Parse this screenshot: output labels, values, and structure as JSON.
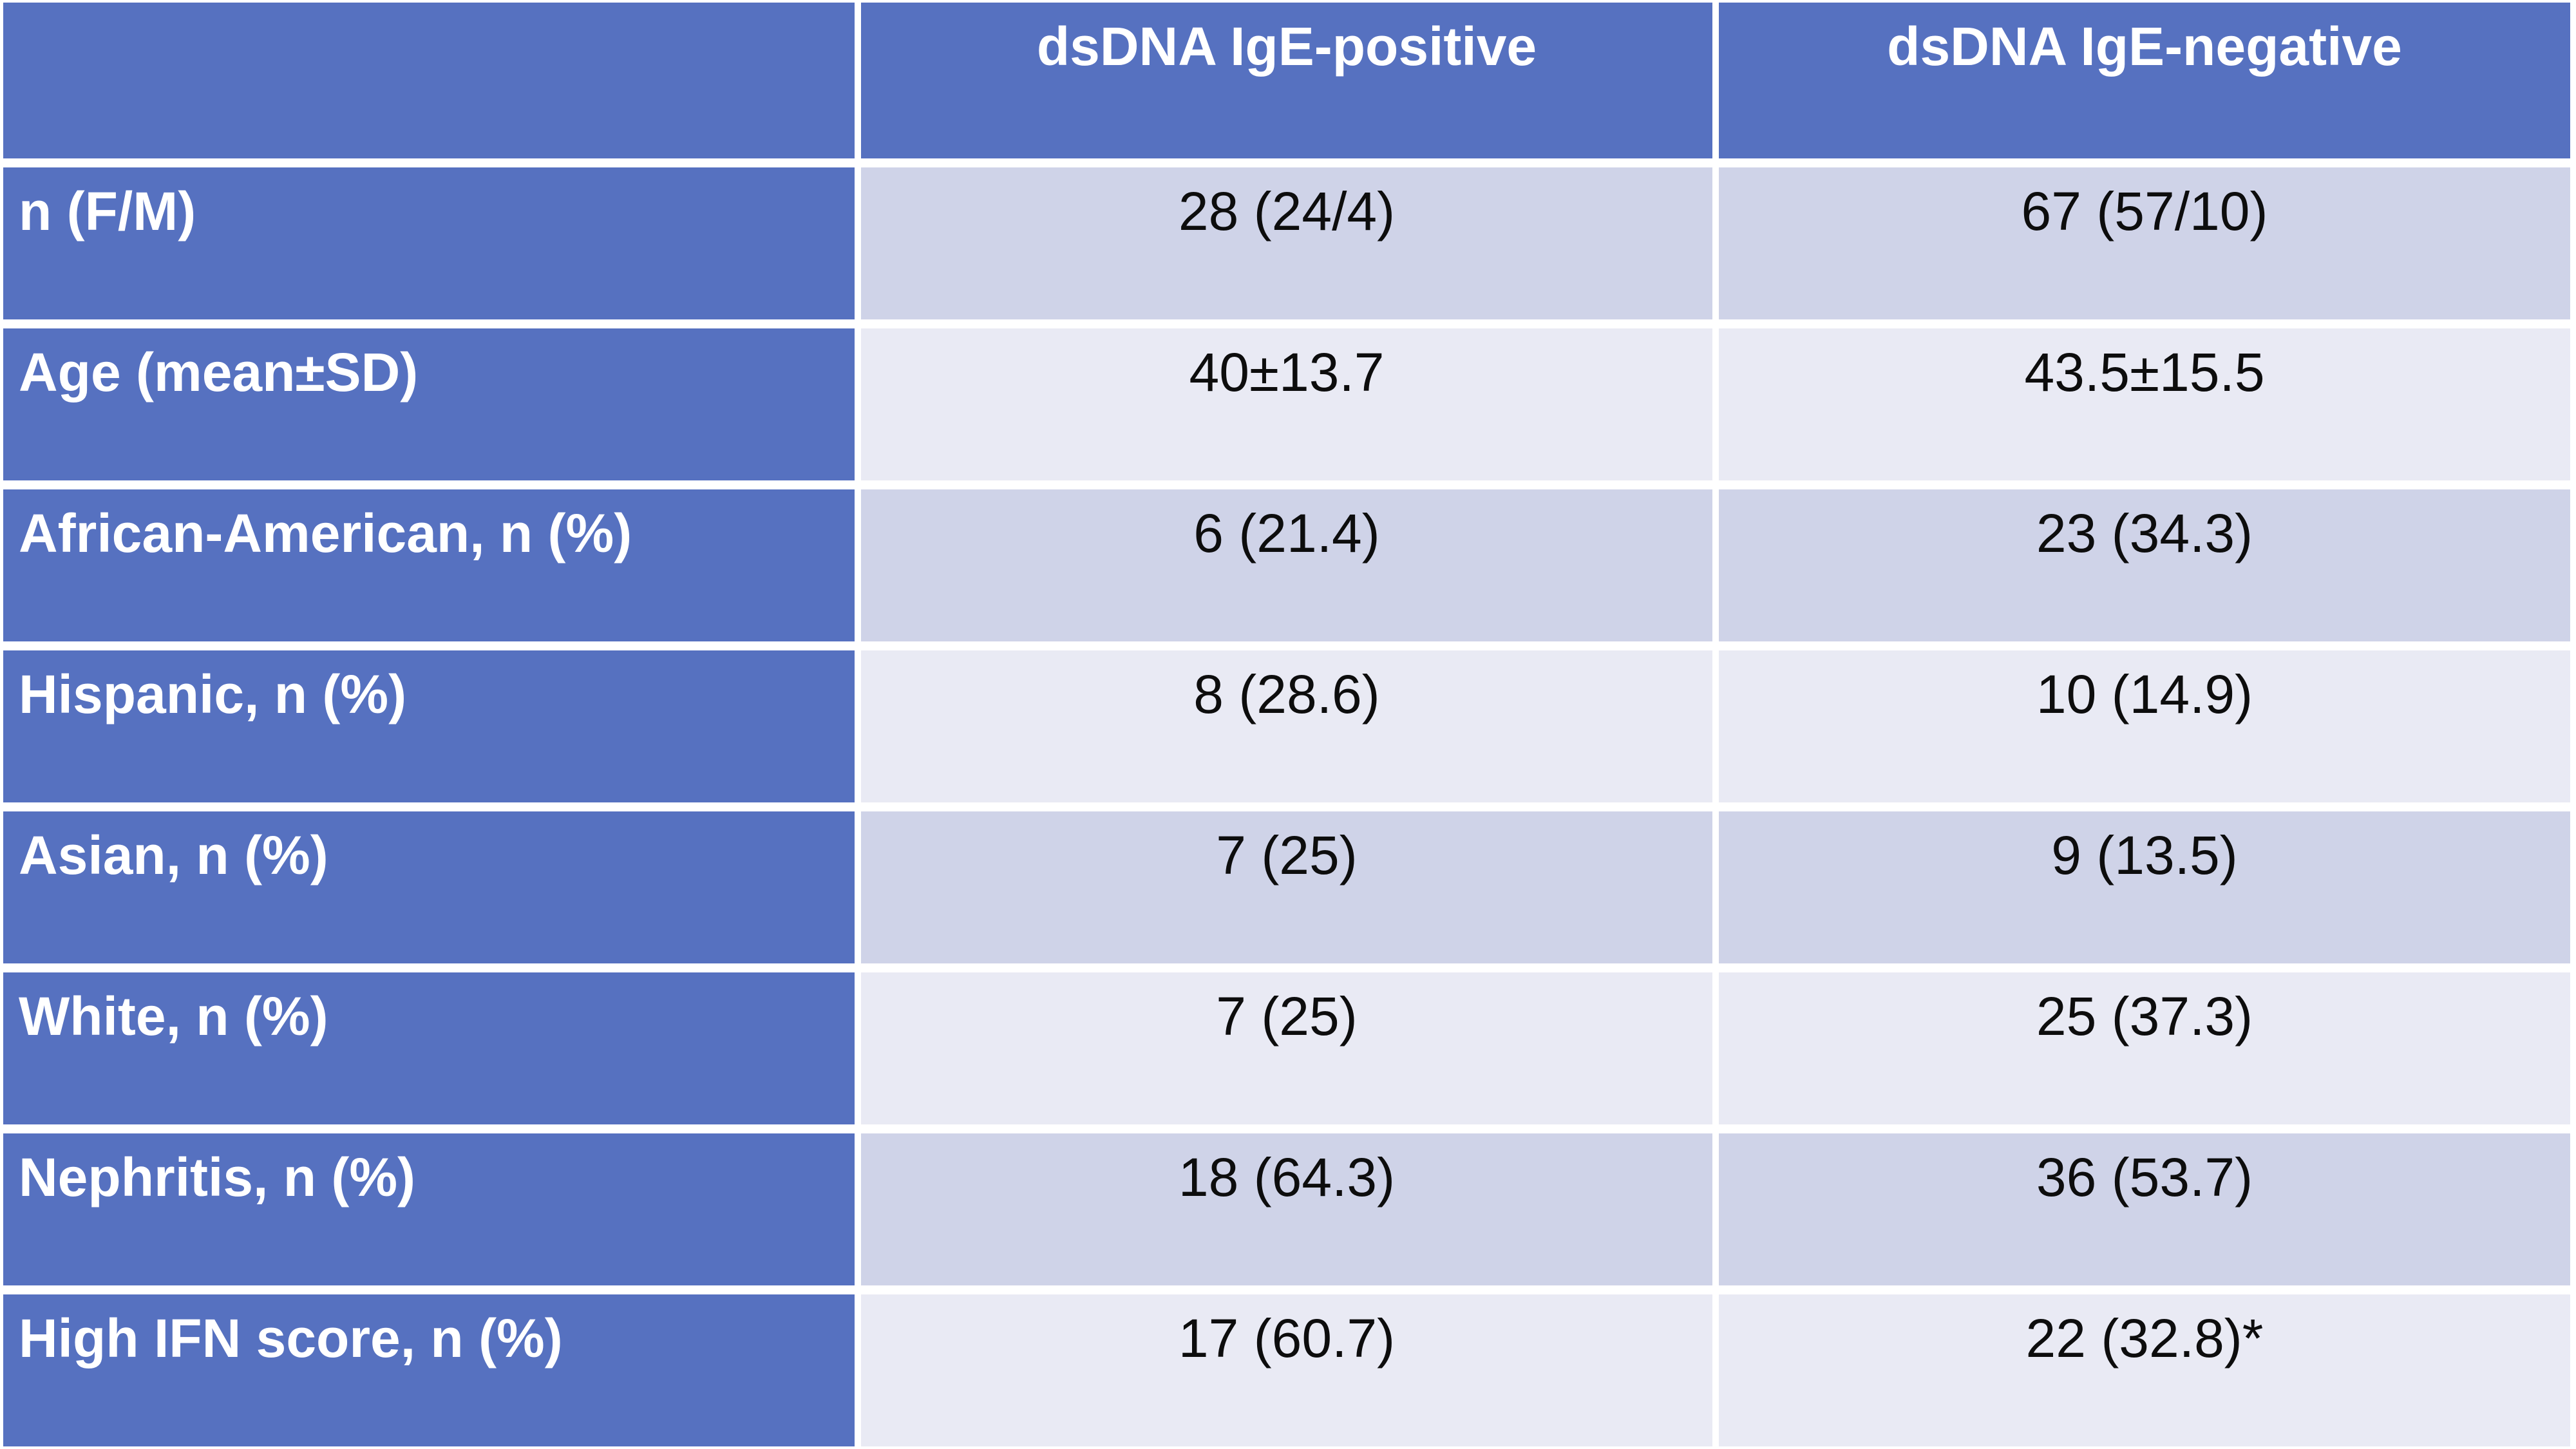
{
  "table": {
    "header": {
      "corner": "",
      "positive": "dsDNA IgE-positive",
      "negative": "dsDNA IgE-negative"
    },
    "rows": [
      {
        "label": "n (F/M)",
        "positive": "28 (24/4)",
        "negative": "67 (57/10)"
      },
      {
        "label": "Age (mean±SD)",
        "positive": "40±13.7",
        "negative": "43.5±15.5"
      },
      {
        "label": "African-American, n (%)",
        "positive": "6 (21.4)",
        "negative": "23 (34.3)"
      },
      {
        "label": "Hispanic, n (%)",
        "positive": "8 (28.6)",
        "negative": "10 (14.9)"
      },
      {
        "label": "Asian, n (%)",
        "positive": "7 (25)",
        "negative": "9 (13.5)"
      },
      {
        "label": "White, n (%)",
        "positive": "7 (25)",
        "negative": "25 (37.3)"
      },
      {
        "label": "Nephritis, n (%)",
        "positive": "18 (64.3)",
        "negative": "36 (53.7)"
      },
      {
        "label": "High IFN score, n (%)",
        "positive": "17 (60.7)",
        "negative": "22 (32.8)*"
      }
    ],
    "colors": {
      "header_blue": "#5671C0",
      "band_dark": "#CFD3E8",
      "band_light": "#E9EAF4",
      "separator_white": "#FFFFFF",
      "header_text": "#FFFFFF",
      "data_text": "#0D0D0D"
    }
  },
  "chart_data": {
    "type": "table",
    "columns": [
      "",
      "dsDNA IgE-positive",
      "dsDNA IgE-negative"
    ],
    "rows": [
      [
        "n (F/M)",
        "28 (24/4)",
        "67 (57/10)"
      ],
      [
        "Age (mean±SD)",
        "40±13.7",
        "43.5±15.5"
      ],
      [
        "African-American, n (%)",
        "6 (21.4)",
        "23 (34.3)"
      ],
      [
        "Hispanic, n (%)",
        "8 (28.6)",
        "10 (14.9)"
      ],
      [
        "Asian, n (%)",
        "7 (25)",
        "9 (13.5)"
      ],
      [
        "White, n (%)",
        "7 (25)",
        "25 (37.3)"
      ],
      [
        "Nephritis, n (%)",
        "18 (64.3)",
        "36 (53.7)"
      ],
      [
        "High IFN score, n (%)",
        "17 (60.7)",
        "22 (32.8)*"
      ]
    ]
  }
}
